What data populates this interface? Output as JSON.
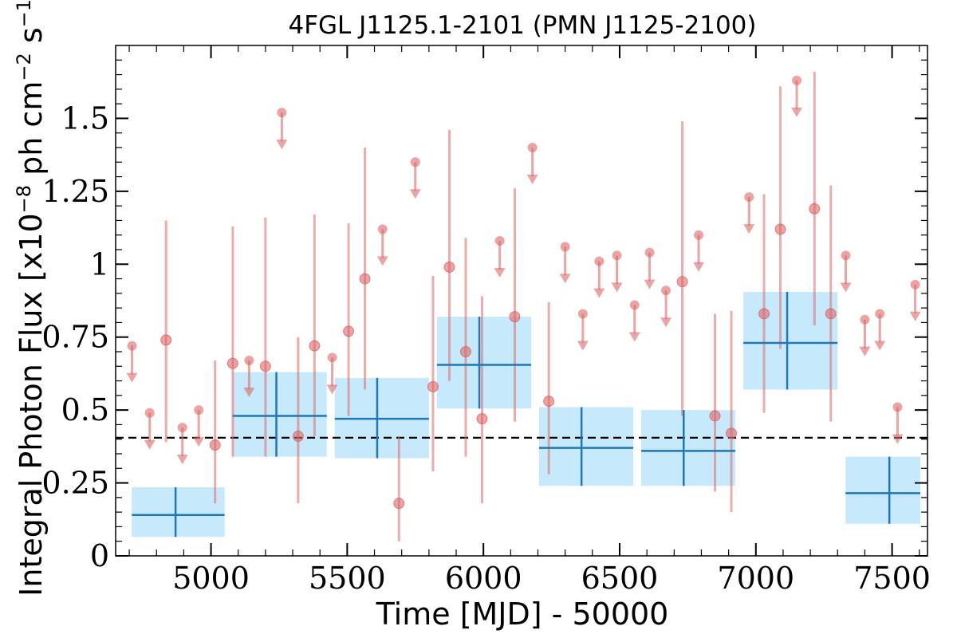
{
  "chart_data": {
    "type": "scatter",
    "title": "4FGL J1125.1-2101 (PMN J1125-2100)",
    "xlabel": "Time [MJD] - 50000",
    "ylabel": {
      "prefix": "Integral Photon Flux [x10",
      "exp1": "−8",
      "middle": " ph cm",
      "exp2": "−2",
      "middle2": " s",
      "exp3": "−1",
      "suffix": "]"
    },
    "xlim": [
      4650,
      7630
    ],
    "ylim": [
      0,
      1.75
    ],
    "x_ticks": [
      5000,
      5500,
      6000,
      6500,
      7000,
      7500
    ],
    "x_tick_labels": [
      "5000",
      "5500",
      "6000",
      "6500",
      "7000",
      "7500"
    ],
    "y_ticks": [
      0,
      0.25,
      0.5,
      0.75,
      1.0,
      1.25,
      1.5
    ],
    "y_tick_labels": [
      "0",
      "0.25",
      "0.5",
      "0.75",
      "1",
      "1.25",
      "1.5"
    ],
    "reference_line": {
      "y": 0.405,
      "style": "dashed",
      "color": "#000000"
    },
    "colors": {
      "points": "#e06666",
      "bins": "#1f77b4",
      "bin_fill": "#c6eafc",
      "reference": "#000000"
    },
    "upper_limits": [
      {
        "x": 4710,
        "y": 0.72
      },
      {
        "x": 4775,
        "y": 0.49
      },
      {
        "x": 4895,
        "y": 0.44
      },
      {
        "x": 4955,
        "y": 0.5
      },
      {
        "x": 5140,
        "y": 0.67
      },
      {
        "x": 5260,
        "y": 1.52
      },
      {
        "x": 5445,
        "y": 0.68
      },
      {
        "x": 5630,
        "y": 1.12
      },
      {
        "x": 5750,
        "y": 1.35
      },
      {
        "x": 6060,
        "y": 1.08
      },
      {
        "x": 6180,
        "y": 1.4
      },
      {
        "x": 6300,
        "y": 1.06
      },
      {
        "x": 6365,
        "y": 0.83
      },
      {
        "x": 6425,
        "y": 1.01
      },
      {
        "x": 6490,
        "y": 1.03
      },
      {
        "x": 6555,
        "y": 0.86
      },
      {
        "x": 6610,
        "y": 1.04
      },
      {
        "x": 6670,
        "y": 0.91
      },
      {
        "x": 6790,
        "y": 1.1
      },
      {
        "x": 6975,
        "y": 1.23
      },
      {
        "x": 7150,
        "y": 1.63
      },
      {
        "x": 7330,
        "y": 1.03
      },
      {
        "x": 7400,
        "y": 0.81
      },
      {
        "x": 7455,
        "y": 0.83
      },
      {
        "x": 7520,
        "y": 0.51
      },
      {
        "x": 7585,
        "y": 0.93
      }
    ],
    "detections": [
      {
        "x": 4835,
        "y": 0.74,
        "ylo": 0.39,
        "yhi": 1.15
      },
      {
        "x": 5015,
        "y": 0.38,
        "ylo": 0.18,
        "yhi": 0.67
      },
      {
        "x": 5080,
        "y": 0.66,
        "ylo": 0.34,
        "yhi": 1.13
      },
      {
        "x": 5200,
        "y": 0.65,
        "ylo": 0.34,
        "yhi": 1.16
      },
      {
        "x": 5320,
        "y": 0.41,
        "ylo": 0.18,
        "yhi": 0.75
      },
      {
        "x": 5380,
        "y": 0.72,
        "ylo": 0.41,
        "yhi": 1.17
      },
      {
        "x": 5505,
        "y": 0.77,
        "ylo": 0.48,
        "yhi": 1.14
      },
      {
        "x": 5565,
        "y": 0.95,
        "ylo": 0.57,
        "yhi": 1.4
      },
      {
        "x": 5690,
        "y": 0.18,
        "ylo": 0.05,
        "yhi": 0.41
      },
      {
        "x": 5815,
        "y": 0.58,
        "ylo": 0.29,
        "yhi": 0.96
      },
      {
        "x": 5875,
        "y": 0.99,
        "ylo": 0.6,
        "yhi": 1.46
      },
      {
        "x": 5935,
        "y": 0.7,
        "ylo": 0.34,
        "yhi": 1.09
      },
      {
        "x": 5995,
        "y": 0.47,
        "ylo": 0.18,
        "yhi": 0.89
      },
      {
        "x": 6115,
        "y": 0.82,
        "ylo": 0.46,
        "yhi": 1.26
      },
      {
        "x": 6240,
        "y": 0.53,
        "ylo": 0.28,
        "yhi": 0.87
      },
      {
        "x": 6730,
        "y": 0.94,
        "ylo": 0.48,
        "yhi": 1.49
      },
      {
        "x": 6850,
        "y": 0.48,
        "ylo": 0.22,
        "yhi": 0.83
      },
      {
        "x": 6910,
        "y": 0.42,
        "ylo": 0.15,
        "yhi": 0.84
      },
      {
        "x": 7030,
        "y": 0.83,
        "ylo": 0.49,
        "yhi": 1.24
      },
      {
        "x": 7090,
        "y": 1.12,
        "ylo": 0.71,
        "yhi": 1.61
      },
      {
        "x": 7215,
        "y": 1.19,
        "ylo": 0.79,
        "yhi": 1.66
      },
      {
        "x": 7275,
        "y": 0.83,
        "ylo": 0.46,
        "yhi": 1.27
      }
    ],
    "bins": [
      {
        "x": 4870,
        "xlo": 4680,
        "xhi": 5050,
        "y": 0.14,
        "ylo": 0.065,
        "yhi": 0.235
      },
      {
        "x": 5240,
        "xlo": 5050,
        "xhi": 5425,
        "y": 0.48,
        "ylo": 0.34,
        "yhi": 0.63
      },
      {
        "x": 5610,
        "xlo": 5425,
        "xhi": 5800,
        "y": 0.47,
        "ylo": 0.335,
        "yhi": 0.61
      },
      {
        "x": 5985,
        "xlo": 5800,
        "xhi": 6175,
        "y": 0.655,
        "ylo": 0.505,
        "yhi": 0.82
      },
      {
        "x": 6360,
        "xlo": 6175,
        "xhi": 6550,
        "y": 0.37,
        "ylo": 0.24,
        "yhi": 0.51
      },
      {
        "x": 6735,
        "xlo": 6550,
        "xhi": 6925,
        "y": 0.36,
        "ylo": 0.24,
        "yhi": 0.5
      },
      {
        "x": 7115,
        "xlo": 6925,
        "xhi": 7300,
        "y": 0.73,
        "ylo": 0.57,
        "yhi": 0.905
      },
      {
        "x": 7490,
        "xlo": 7300,
        "xhi": 7675,
        "y": 0.215,
        "ylo": 0.11,
        "yhi": 0.34
      }
    ]
  }
}
